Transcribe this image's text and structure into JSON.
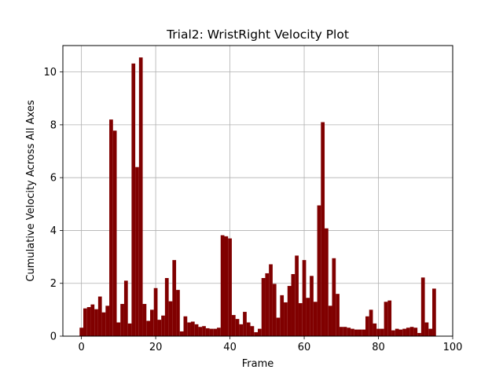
{
  "chart_data": {
    "type": "bar",
    "title": "Trial2: WristRight Velocity Plot",
    "xlabel": "Frame",
    "ylabel": "Cumulative Velocity Across All Axes",
    "xlim": [
      -5,
      100
    ],
    "ylim": [
      0,
      11
    ],
    "xticks": [
      0,
      20,
      40,
      60,
      80,
      100
    ],
    "yticks": [
      0,
      2,
      4,
      6,
      8,
      10
    ],
    "grid": true,
    "bar_color": "#800000",
    "x": [
      0,
      1,
      2,
      3,
      4,
      5,
      6,
      7,
      8,
      9,
      10,
      11,
      12,
      13,
      14,
      15,
      16,
      17,
      18,
      19,
      20,
      21,
      22,
      23,
      24,
      25,
      26,
      27,
      28,
      29,
      30,
      31,
      32,
      33,
      34,
      35,
      36,
      37,
      38,
      39,
      40,
      41,
      42,
      43,
      44,
      45,
      46,
      47,
      48,
      49,
      50,
      51,
      52,
      53,
      54,
      55,
      56,
      57,
      58,
      59,
      60,
      61,
      62,
      63,
      64,
      65,
      66,
      67,
      68,
      69,
      70,
      71,
      72,
      73,
      74,
      75,
      76,
      77,
      78,
      79,
      80,
      81,
      82,
      83,
      84,
      85,
      86,
      87,
      88,
      89,
      90,
      91,
      92,
      93,
      94,
      95
    ],
    "values": [
      0.32,
      1.05,
      1.1,
      1.2,
      1.02,
      1.5,
      0.9,
      1.15,
      8.2,
      7.78,
      0.52,
      1.22,
      2.1,
      0.48,
      10.32,
      6.4,
      10.55,
      1.22,
      0.58,
      1.0,
      1.82,
      0.62,
      0.78,
      2.2,
      1.32,
      2.88,
      1.75,
      0.18,
      0.75,
      0.52,
      0.55,
      0.45,
      0.35,
      0.38,
      0.3,
      0.28,
      0.28,
      0.32,
      3.82,
      3.78,
      3.7,
      0.8,
      0.65,
      0.45,
      0.92,
      0.52,
      0.38,
      0.15,
      0.28,
      2.2,
      2.38,
      2.72,
      1.98,
      0.7,
      1.55,
      1.28,
      1.9,
      2.35,
      3.05,
      1.25,
      2.88,
      1.45,
      2.28,
      1.3,
      4.95,
      8.1,
      4.08,
      1.15,
      2.95,
      1.6,
      0.35,
      0.35,
      0.32,
      0.28,
      0.25,
      0.25,
      0.25,
      0.75,
      1.0,
      0.48,
      0.28,
      0.28,
      1.3,
      1.35,
      0.22,
      0.28,
      0.25,
      0.28,
      0.32,
      0.35,
      0.32,
      0.12,
      2.22,
      0.52,
      0.28,
      1.8
    ]
  }
}
